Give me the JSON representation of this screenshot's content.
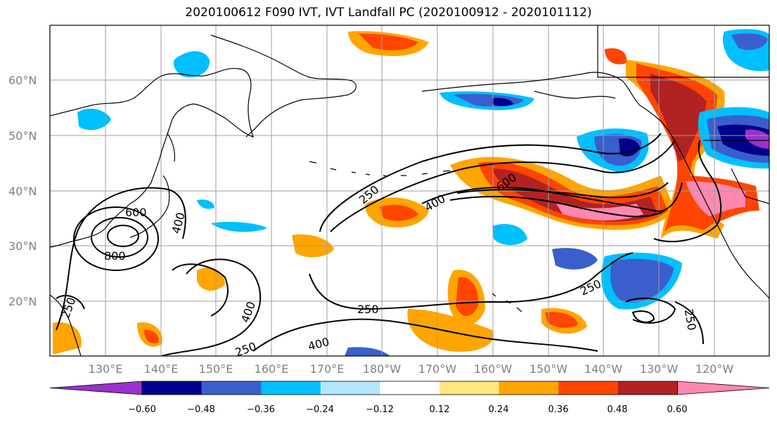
{
  "title": "2020100612 F090 IVT, IVT Landfall PC (2020100912 - 2020101112)",
  "lat_labels": [
    "60°N",
    "50°N",
    "40°N",
    "30°N",
    "20°N"
  ],
  "lon_labels": [
    "130°E",
    "140°E",
    "150°E",
    "160°E",
    "170°E",
    "180°W",
    "170°W",
    "160°W",
    "150°W",
    "140°W",
    "130°W",
    "120°W"
  ],
  "colorbar": {
    "ticks": [
      "−0.60",
      "−0.48",
      "−0.36",
      "−0.24",
      "−0.12",
      "0.12",
      "0.24",
      "0.36",
      "0.48",
      "0.60"
    ],
    "colors": [
      "#9932cc",
      "#00008b",
      "#3a5fcd",
      "#00bfff",
      "#b3e5fc",
      "#ffffff",
      "#ffe680",
      "#ffa500",
      "#ff4500",
      "#b22222",
      "#ff88b0"
    ]
  },
  "contour_labels": [
    "600",
    "400",
    "800",
    "250",
    "400",
    "250",
    "400",
    "600",
    "250",
    "250",
    "250",
    "250"
  ],
  "colors": {
    "coast": "#000000",
    "grid": "#9e9e9e"
  }
}
